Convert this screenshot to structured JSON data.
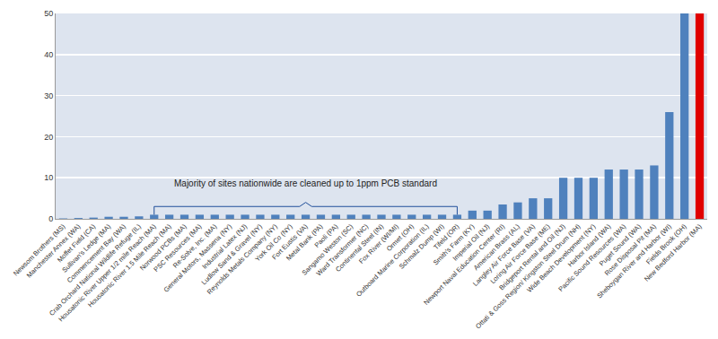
{
  "chart_data": {
    "type": "bar",
    "categories": [
      "Newsom Brothers (MS)",
      "Manchester Annex (WA)",
      "Moffet Field (CA)",
      "Sullivan's Ledge (MA)",
      "Commencement Bay (WA)",
      "Crab Orchard National Wildlife Refuge (IL)",
      "Housatonic River Upper 1/2 mile Reach (MA)",
      "Housatonic River 1.5 Mile Reach (MA)",
      "Norwood PCBs (MA)",
      "PSC Resources (MA)",
      "Re-Solve, Inc. (MA)",
      "General Motors, Massena (NY)",
      "Industrial Latex (NJ)",
      "Ludlow Sand & Gravel (NY)",
      "Reynolds Metals Company (NY)",
      "York Oil Co (NY)",
      "Fort Eustis (VA)",
      "Metal Bank (PA)",
      "Paoli (PA)",
      "Sangamo Weston (SC)",
      "Ward Transformer (NC)",
      "Continental Steel (IN)",
      "Fox River (WI/MI)",
      "Ormet (OH)",
      "Outboard Marine Corporation (IL)",
      "Schmalz Dump (WI)",
      "Tifeld (OR)",
      "Smith's Farm (KY)",
      "Imperial Oil (NJ)",
      "Newport Naval Education Center (RI)",
      "American Brass (AL)",
      "Langley Air Force Base (VA)",
      "Loring Air Force Base (ME)",
      "Bridgeport Rental and Oil (NJ)",
      "Ottati & Goss Region/ Kingston Steel Drum (NH)",
      "Wide Beach Development (NY)",
      "Harbor Island (WA)",
      "Pacific Sound Resources (WA)",
      "Puget Sound (WA)",
      "Rose Disposal Pit (MA)",
      "Sheboygan River and Harbor (WI)",
      "Fields Brook (OH)",
      "New Bedford Harbor (MA)"
    ],
    "values": [
      0.1,
      0.2,
      0.3,
      0.5,
      0.5,
      0.6,
      1,
      1,
      1,
      1,
      1,
      1,
      1,
      1,
      1,
      1,
      1,
      1,
      1,
      1,
      1,
      1,
      1,
      1,
      1,
      1,
      1,
      2,
      2,
      3.5,
      4,
      5,
      5,
      10,
      10,
      10,
      12,
      12,
      12,
      13,
      26,
      50,
      50
    ],
    "colors": [
      "#4f81bd",
      "#4f81bd",
      "#4f81bd",
      "#4f81bd",
      "#4f81bd",
      "#4f81bd",
      "#4f81bd",
      "#4f81bd",
      "#4f81bd",
      "#4f81bd",
      "#4f81bd",
      "#4f81bd",
      "#4f81bd",
      "#4f81bd",
      "#4f81bd",
      "#4f81bd",
      "#4f81bd",
      "#4f81bd",
      "#4f81bd",
      "#4f81bd",
      "#4f81bd",
      "#4f81bd",
      "#4f81bd",
      "#4f81bd",
      "#4f81bd",
      "#4f81bd",
      "#4f81bd",
      "#4f81bd",
      "#4f81bd",
      "#4f81bd",
      "#4f81bd",
      "#4f81bd",
      "#4f81bd",
      "#4f81bd",
      "#4f81bd",
      "#4f81bd",
      "#4f81bd",
      "#4f81bd",
      "#4f81bd",
      "#4f81bd",
      "#4f81bd",
      "#4f81bd",
      "#e00000"
    ],
    "annotations": [
      "Majority of sites nationwide are cleaned up to 1ppm PCB standard"
    ],
    "ylim": [
      0,
      50
    ],
    "yticks": [
      0,
      10,
      20,
      30,
      40,
      50
    ],
    "grid": true
  }
}
